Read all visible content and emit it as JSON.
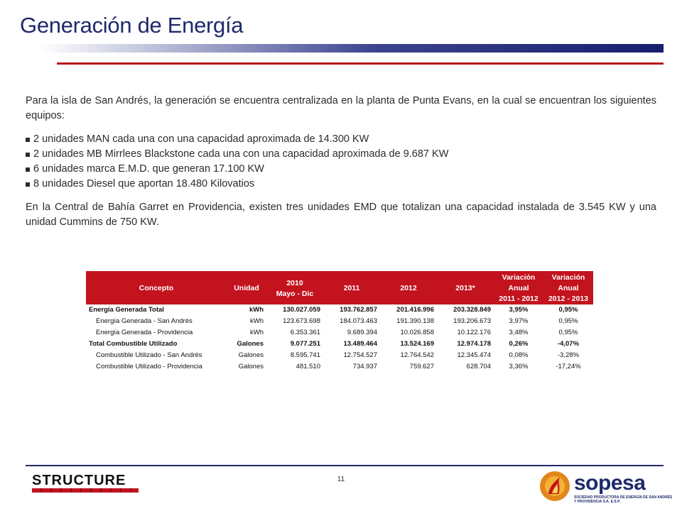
{
  "header": {
    "title": "Generación de Energía"
  },
  "intro": {
    "paragraph": "Para la isla de San Andrés, la generación se encuentra centralizada en la planta de Punta Evans, en la cual se encuentran los siguientes equipos:"
  },
  "bullets": [
    "2 unidades MAN cada una con una capacidad aproximada de 14.300 KW",
    "2 unidades MB Mirrlees Blackstone cada una con una capacidad aproximada de 9.687 KW",
    "6 unidades marca E.M.D. que generan 17.100 KW",
    "8 unidades Diesel que aportan 18.480 Kilovatios"
  ],
  "providencia": {
    "paragraph": "En la Central de Bahía Garret en Providencia, existen tres unidades EMD que totalizan una capacidad instalada de 3.545 KW y una unidad Cummins de 750 KW."
  },
  "table": {
    "headers": {
      "concepto": "Concepto",
      "unidad": "Unidad",
      "y2010_a": "2010",
      "y2010_b": "Mayo - Dic",
      "y2011": "2011",
      "y2012": "2012",
      "y2013": "2013*",
      "var1_a": "Variación",
      "var1_b": "Anual",
      "var1_c": "2011 - 2012",
      "var2_a": "Variación",
      "var2_b": "Anual",
      "var2_c": "2012 - 2013"
    },
    "rows": [
      {
        "concepto": "Energía Generada Total",
        "unidad": "kWh",
        "v2010": "130.027.059",
        "v2011": "193.762.857",
        "v2012": "201.416.996",
        "v2013": "203.328.849",
        "var1": "3,95%",
        "var2": "0,95%"
      },
      {
        "concepto": "Energía Generada - San Andrés",
        "unidad": "kWh",
        "v2010": "123.673.698",
        "v2011": "184.073.463",
        "v2012": "191.390.138",
        "v2013": "193.206.673",
        "var1": "3,97%",
        "var2": "0,95%"
      },
      {
        "concepto": "Energía Generada - Providencia",
        "unidad": "kWh",
        "v2010": "6.353.361",
        "v2011": "9.689.394",
        "v2012": "10.026.858",
        "v2013": "10.122.176",
        "var1": "3,48%",
        "var2": "0,95%"
      },
      {
        "concepto": "Total Combustible Utilizado",
        "unidad": "Galones",
        "v2010": "9.077.251",
        "v2011": "13.489.464",
        "v2012": "13.524.169",
        "v2013": "12.974.178",
        "var1": "0,26%",
        "var2": "-4,07%"
      },
      {
        "concepto": "Combustible Utilizado - San Andrés",
        "unidad": "Galones",
        "v2010": "8.595.741",
        "v2011": "12.754.527",
        "v2012": "12.764.542",
        "v2013": "12.345.474",
        "var1": "0,08%",
        "var2": "-3,28%"
      },
      {
        "concepto": "Combustible Utilizado - Providencia",
        "unidad": "Galones",
        "v2010": "481.510",
        "v2011": "734.937",
        "v2012": "759.627",
        "v2013": "628.704",
        "var1": "3,36%",
        "var2": "-17,24%"
      }
    ]
  },
  "footer": {
    "page_number": "11",
    "structure_logo": "STRUCTURE",
    "sopesa_logo": "sopesa",
    "sopesa_tagline": "SOCIEDAD PRODUCTORA DE ENERGÍA DE SAN ANDRÉS Y PROVIDENCIA S.A. E.S.P."
  },
  "colors": {
    "title": "#1f2a6b",
    "accent_red": "#c3131e",
    "navy": "#1f2a6b"
  }
}
